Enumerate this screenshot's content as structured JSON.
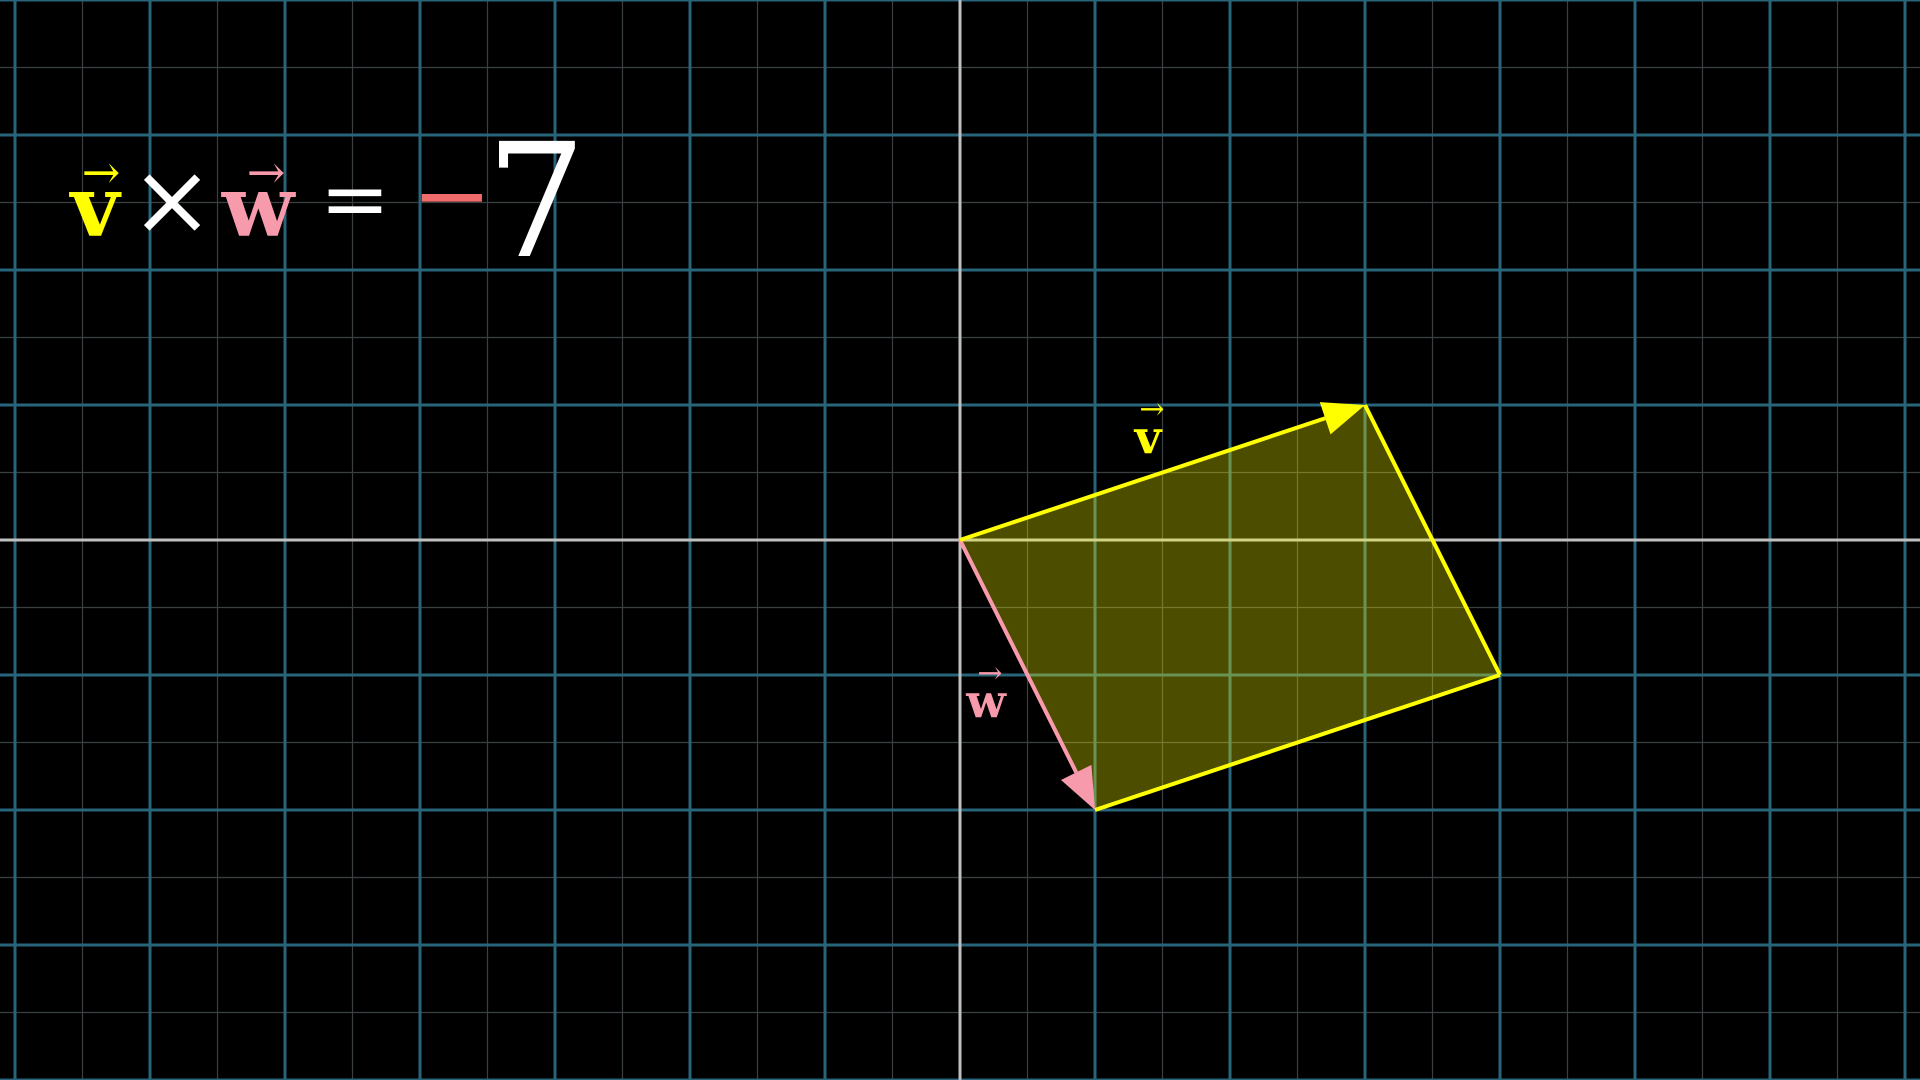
{
  "colors": {
    "background": "#000000",
    "grid_major": "#29657a",
    "grid_minor": "#3a3f42",
    "axis": "#bfbfbf",
    "v": "#ffff00",
    "w": "#f79aac",
    "fill": "#4a4600",
    "text": "#ffffff"
  },
  "plane": {
    "x_range": [
      -7,
      7
    ],
    "y_range": [
      -4,
      4
    ]
  },
  "vectors": {
    "v": {
      "name": "v",
      "components": [
        3,
        1
      ]
    },
    "w": {
      "name": "w",
      "components": [
        1,
        -2
      ]
    }
  },
  "equation": {
    "left_vector": "v",
    "operator": "×",
    "right_vector": "w",
    "equals": "=",
    "sign": "−",
    "value": "7"
  },
  "labels": {
    "v_label": "v",
    "w_label": "w"
  }
}
